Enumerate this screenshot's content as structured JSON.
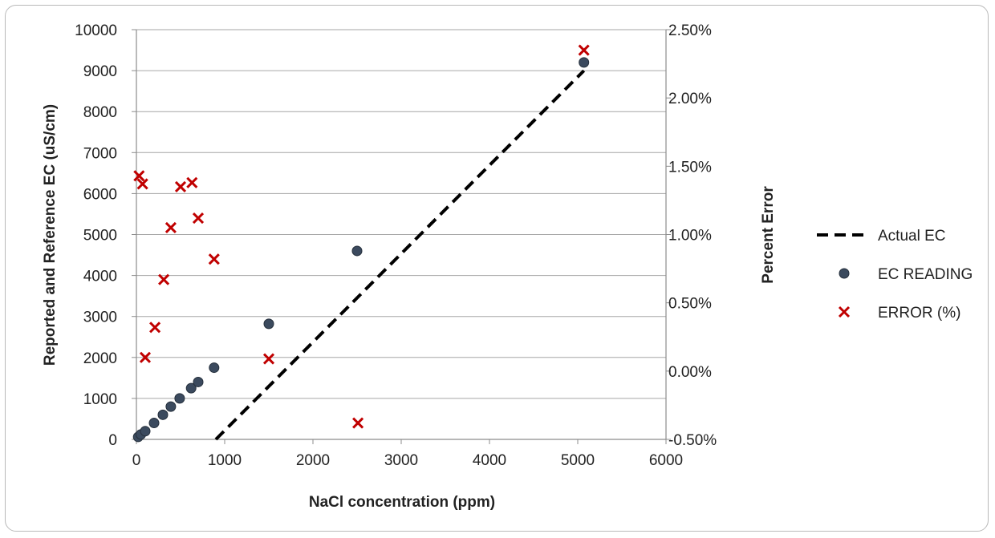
{
  "chart_data": {
    "type": "scatter",
    "title": "",
    "xlabel": "NaCl concentration (ppm)",
    "ylabel": "Reported and Reference EC (uS/cm)",
    "y2label": "Percent Error",
    "xlim": [
      0,
      6000
    ],
    "ylim": [
      0,
      10000
    ],
    "y2lim": [
      -0.005,
      0.025
    ],
    "xticks": [
      "0",
      "1000",
      "2000",
      "3000",
      "4000",
      "5000",
      "6000"
    ],
    "xtick_values": [
      0,
      1000,
      2000,
      3000,
      4000,
      5000,
      6000
    ],
    "yticks": [
      "0",
      "1000",
      "2000",
      "3000",
      "4000",
      "5000",
      "6000",
      "7000",
      "8000",
      "9000",
      "10000"
    ],
    "ytick_values": [
      0,
      1000,
      2000,
      3000,
      4000,
      5000,
      6000,
      7000,
      8000,
      9000,
      10000
    ],
    "y2ticks": [
      "-0.50%",
      "0.00%",
      "0.50%",
      "1.00%",
      "1.50%",
      "2.00%",
      "2.50%"
    ],
    "y2tick_values": [
      -0.005,
      0,
      0.005,
      0.01,
      0.015,
      0.02,
      0.025
    ],
    "grid": "horizontal",
    "legend_position": "right",
    "series": [
      {
        "name": "Actual EC",
        "kind": "line",
        "style": "dashed",
        "axis": "left",
        "color": "#000000",
        "x": [
          900,
          5070
        ],
        "y": [
          0,
          9000
        ]
      },
      {
        "name": "EC READING",
        "kind": "scatter",
        "marker": "circle",
        "axis": "left",
        "color": "#3b4a5e",
        "x": [
          20,
          50,
          100,
          200,
          300,
          390,
          490,
          620,
          700,
          880,
          1500,
          2500,
          5070
        ],
        "y": [
          60,
          120,
          200,
          400,
          600,
          800,
          1000,
          1250,
          1400,
          1750,
          2820,
          4600,
          9200
        ]
      },
      {
        "name": "ERROR (%)",
        "kind": "scatter",
        "marker": "x",
        "axis": "right",
        "color": "#c00000",
        "x": [
          30,
          70,
          100,
          210,
          310,
          390,
          500,
          630,
          700,
          880,
          1500,
          2510,
          5070
        ],
        "y": [
          0.0143,
          0.0137,
          0.001,
          0.0032,
          0.0067,
          0.0105,
          0.0135,
          0.0138,
          0.0112,
          0.0082,
          0.0009,
          -0.0038,
          0.0235
        ]
      }
    ]
  }
}
